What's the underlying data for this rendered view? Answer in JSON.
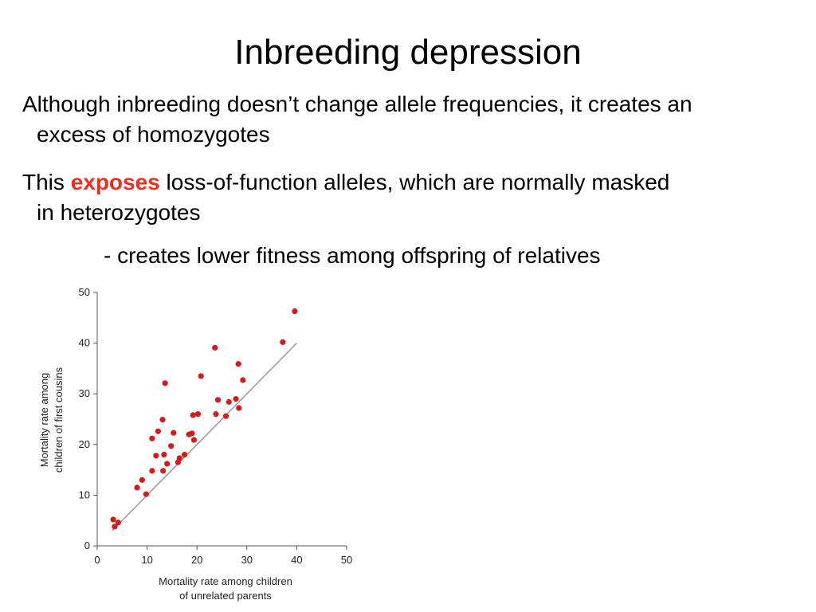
{
  "slide": {
    "title": "Inbreeding depression",
    "para1_line1": "Although inbreeding doesn’t change allele frequencies, it creates an",
    "para1_line2": "excess of homozygotes",
    "para2_prefix": "This ",
    "para2_emphasis": "exposes",
    "para2_suffix": " loss-of-function alleles, which are normally masked",
    "para2_line2": "in heterozygotes",
    "sub_point": "- creates lower fitness among offspring of relatives",
    "accent_color": "#e8311f"
  },
  "chart_data": {
    "type": "scatter",
    "title": "",
    "xlabel_lines": [
      "Mortality rate among children",
      "of unrelated parents"
    ],
    "ylabel_lines": [
      "Mortality rate among",
      "children of first cousins"
    ],
    "xlim": [
      0,
      50
    ],
    "ylim": [
      0,
      50
    ],
    "xticks": [
      0,
      10,
      20,
      30,
      40,
      50
    ],
    "yticks": [
      0,
      10,
      20,
      30,
      40,
      50
    ],
    "grid": false,
    "point_color": "#d01c1c",
    "reference_line": {
      "from": [
        3,
        3
      ],
      "to": [
        40,
        40
      ],
      "color": "#9a9a9a"
    },
    "points": [
      {
        "x": 3.2,
        "y": 5.2
      },
      {
        "x": 3.5,
        "y": 3.8
      },
      {
        "x": 4.2,
        "y": 4.6
      },
      {
        "x": 8.0,
        "y": 11.5
      },
      {
        "x": 9.0,
        "y": 13.0
      },
      {
        "x": 9.8,
        "y": 10.2
      },
      {
        "x": 11.0,
        "y": 14.8
      },
      {
        "x": 11.0,
        "y": 21.2
      },
      {
        "x": 11.8,
        "y": 17.8
      },
      {
        "x": 12.2,
        "y": 22.6
      },
      {
        "x": 13.1,
        "y": 24.9
      },
      {
        "x": 13.2,
        "y": 14.8
      },
      {
        "x": 13.4,
        "y": 18.0
      },
      {
        "x": 13.6,
        "y": 32.1
      },
      {
        "x": 14.0,
        "y": 16.2
      },
      {
        "x": 14.8,
        "y": 19.7
      },
      {
        "x": 15.3,
        "y": 22.3
      },
      {
        "x": 16.2,
        "y": 16.5
      },
      {
        "x": 16.5,
        "y": 17.3
      },
      {
        "x": 17.5,
        "y": 18.0
      },
      {
        "x": 18.4,
        "y": 22.0
      },
      {
        "x": 19.0,
        "y": 22.2
      },
      {
        "x": 19.2,
        "y": 25.8
      },
      {
        "x": 19.4,
        "y": 20.9
      },
      {
        "x": 20.2,
        "y": 26.0
      },
      {
        "x": 20.8,
        "y": 33.5
      },
      {
        "x": 23.6,
        "y": 39.1
      },
      {
        "x": 23.8,
        "y": 26.0
      },
      {
        "x": 24.2,
        "y": 28.8
      },
      {
        "x": 25.8,
        "y": 25.6
      },
      {
        "x": 26.4,
        "y": 28.4
      },
      {
        "x": 27.8,
        "y": 29.0
      },
      {
        "x": 28.3,
        "y": 35.9
      },
      {
        "x": 28.4,
        "y": 27.2
      },
      {
        "x": 29.2,
        "y": 32.7
      },
      {
        "x": 37.2,
        "y": 40.2
      },
      {
        "x": 39.6,
        "y": 46.3
      }
    ]
  }
}
